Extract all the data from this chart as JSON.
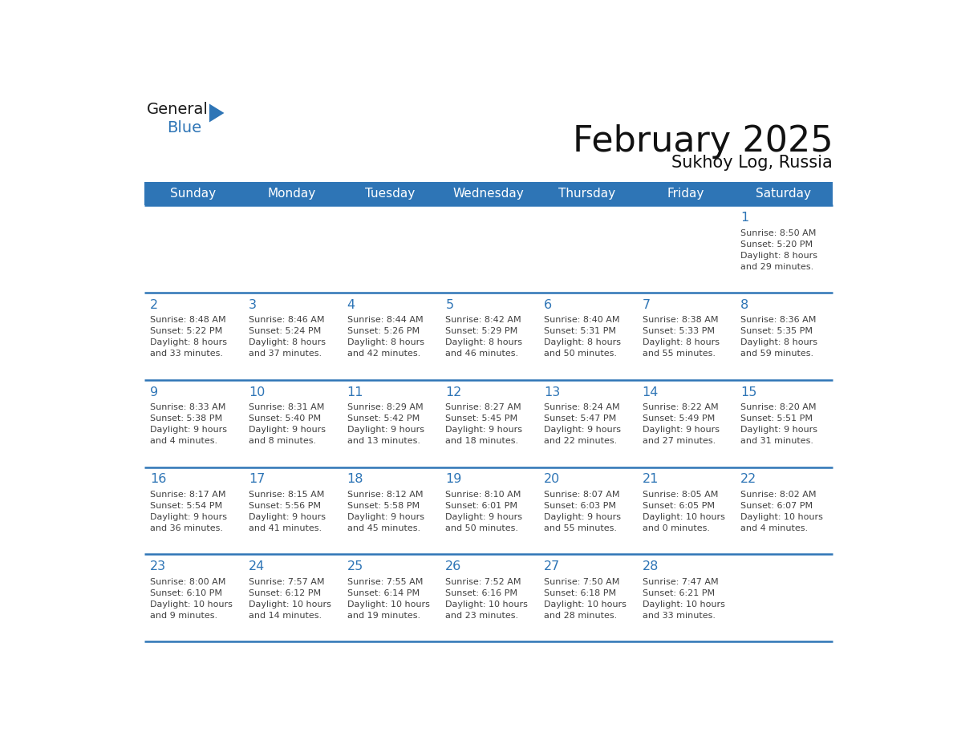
{
  "title": "February 2025",
  "subtitle": "Sukhoy Log, Russia",
  "days_of_week": [
    "Sunday",
    "Monday",
    "Tuesday",
    "Wednesday",
    "Thursday",
    "Friday",
    "Saturday"
  ],
  "header_bg": "#2E75B6",
  "header_text": "#FFFFFF",
  "cell_bg_light": "#F0F4F8",
  "cell_bg_white": "#FFFFFF",
  "line_color": "#2E75B6",
  "day_number_color": "#2E75B6",
  "text_color": "#404040",
  "calendar": [
    [
      {
        "day": null,
        "info": null
      },
      {
        "day": null,
        "info": null
      },
      {
        "day": null,
        "info": null
      },
      {
        "day": null,
        "info": null
      },
      {
        "day": null,
        "info": null
      },
      {
        "day": null,
        "info": null
      },
      {
        "day": 1,
        "info": "Sunrise: 8:50 AM\nSunset: 5:20 PM\nDaylight: 8 hours\nand 29 minutes."
      }
    ],
    [
      {
        "day": 2,
        "info": "Sunrise: 8:48 AM\nSunset: 5:22 PM\nDaylight: 8 hours\nand 33 minutes."
      },
      {
        "day": 3,
        "info": "Sunrise: 8:46 AM\nSunset: 5:24 PM\nDaylight: 8 hours\nand 37 minutes."
      },
      {
        "day": 4,
        "info": "Sunrise: 8:44 AM\nSunset: 5:26 PM\nDaylight: 8 hours\nand 42 minutes."
      },
      {
        "day": 5,
        "info": "Sunrise: 8:42 AM\nSunset: 5:29 PM\nDaylight: 8 hours\nand 46 minutes."
      },
      {
        "day": 6,
        "info": "Sunrise: 8:40 AM\nSunset: 5:31 PM\nDaylight: 8 hours\nand 50 minutes."
      },
      {
        "day": 7,
        "info": "Sunrise: 8:38 AM\nSunset: 5:33 PM\nDaylight: 8 hours\nand 55 minutes."
      },
      {
        "day": 8,
        "info": "Sunrise: 8:36 AM\nSunset: 5:35 PM\nDaylight: 8 hours\nand 59 minutes."
      }
    ],
    [
      {
        "day": 9,
        "info": "Sunrise: 8:33 AM\nSunset: 5:38 PM\nDaylight: 9 hours\nand 4 minutes."
      },
      {
        "day": 10,
        "info": "Sunrise: 8:31 AM\nSunset: 5:40 PM\nDaylight: 9 hours\nand 8 minutes."
      },
      {
        "day": 11,
        "info": "Sunrise: 8:29 AM\nSunset: 5:42 PM\nDaylight: 9 hours\nand 13 minutes."
      },
      {
        "day": 12,
        "info": "Sunrise: 8:27 AM\nSunset: 5:45 PM\nDaylight: 9 hours\nand 18 minutes."
      },
      {
        "day": 13,
        "info": "Sunrise: 8:24 AM\nSunset: 5:47 PM\nDaylight: 9 hours\nand 22 minutes."
      },
      {
        "day": 14,
        "info": "Sunrise: 8:22 AM\nSunset: 5:49 PM\nDaylight: 9 hours\nand 27 minutes."
      },
      {
        "day": 15,
        "info": "Sunrise: 8:20 AM\nSunset: 5:51 PM\nDaylight: 9 hours\nand 31 minutes."
      }
    ],
    [
      {
        "day": 16,
        "info": "Sunrise: 8:17 AM\nSunset: 5:54 PM\nDaylight: 9 hours\nand 36 minutes."
      },
      {
        "day": 17,
        "info": "Sunrise: 8:15 AM\nSunset: 5:56 PM\nDaylight: 9 hours\nand 41 minutes."
      },
      {
        "day": 18,
        "info": "Sunrise: 8:12 AM\nSunset: 5:58 PM\nDaylight: 9 hours\nand 45 minutes."
      },
      {
        "day": 19,
        "info": "Sunrise: 8:10 AM\nSunset: 6:01 PM\nDaylight: 9 hours\nand 50 minutes."
      },
      {
        "day": 20,
        "info": "Sunrise: 8:07 AM\nSunset: 6:03 PM\nDaylight: 9 hours\nand 55 minutes."
      },
      {
        "day": 21,
        "info": "Sunrise: 8:05 AM\nSunset: 6:05 PM\nDaylight: 10 hours\nand 0 minutes."
      },
      {
        "day": 22,
        "info": "Sunrise: 8:02 AM\nSunset: 6:07 PM\nDaylight: 10 hours\nand 4 minutes."
      }
    ],
    [
      {
        "day": 23,
        "info": "Sunrise: 8:00 AM\nSunset: 6:10 PM\nDaylight: 10 hours\nand 9 minutes."
      },
      {
        "day": 24,
        "info": "Sunrise: 7:57 AM\nSunset: 6:12 PM\nDaylight: 10 hours\nand 14 minutes."
      },
      {
        "day": 25,
        "info": "Sunrise: 7:55 AM\nSunset: 6:14 PM\nDaylight: 10 hours\nand 19 minutes."
      },
      {
        "day": 26,
        "info": "Sunrise: 7:52 AM\nSunset: 6:16 PM\nDaylight: 10 hours\nand 23 minutes."
      },
      {
        "day": 27,
        "info": "Sunrise: 7:50 AM\nSunset: 6:18 PM\nDaylight: 10 hours\nand 28 minutes."
      },
      {
        "day": 28,
        "info": "Sunrise: 7:47 AM\nSunset: 6:21 PM\nDaylight: 10 hours\nand 33 minutes."
      },
      {
        "day": null,
        "info": null
      }
    ]
  ],
  "logo_text_general": "General",
  "logo_text_blue": "Blue",
  "logo_triangle_color": "#2E75B6",
  "logo_general_color": "#1a1a1a"
}
